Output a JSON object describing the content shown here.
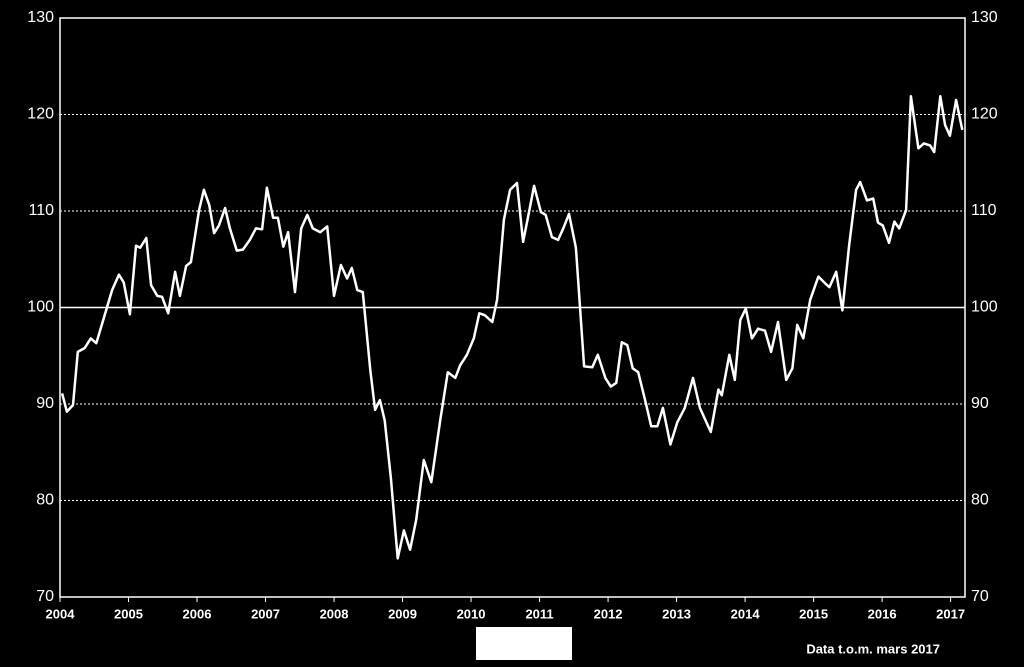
{
  "chart_data": {
    "type": "line",
    "annotation": "Data t.o.m. mars 2017",
    "xlim": [
      2004,
      2017.21
    ],
    "xticks": [
      2004,
      2005,
      2006,
      2007,
      2008,
      2009,
      2010,
      2011,
      2012,
      2013,
      2014,
      2015,
      2016,
      2017
    ],
    "ylim": [
      70,
      130
    ],
    "yticks": [
      70,
      80,
      90,
      100,
      110,
      120,
      130
    ],
    "y2lim": [
      70,
      130
    ],
    "y2ticks": [
      70,
      80,
      90,
      100,
      110,
      120,
      130
    ],
    "grid": true,
    "baseline": 100,
    "series": [
      {
        "color": "#ffffff",
        "x": [
          2004.03,
          2004.1,
          2004.19,
          2004.26,
          2004.36,
          2004.45,
          2004.53,
          2004.64,
          2004.76,
          2004.86,
          2004.93,
          2005.02,
          2005.11,
          2005.17,
          2005.26,
          2005.33,
          2005.42,
          2005.49,
          2005.58,
          2005.68,
          2005.75,
          2005.84,
          2005.91,
          2006.03,
          2006.1,
          2006.18,
          2006.25,
          2006.32,
          2006.41,
          2006.48,
          2006.58,
          2006.67,
          2006.77,
          2006.86,
          2006.95,
          2007.02,
          2007.11,
          2007.18,
          2007.26,
          2007.33,
          2007.43,
          2007.52,
          2007.61,
          2007.69,
          2007.8,
          2007.9,
          2008.0,
          2008.1,
          2008.19,
          2008.26,
          2008.34,
          2008.42,
          2008.53,
          2008.6,
          2008.67,
          2008.74,
          2008.83,
          2008.93,
          2009.02,
          2009.11,
          2009.2,
          2009.31,
          2009.42,
          2009.55,
          2009.66,
          2009.77,
          2009.84,
          2009.94,
          2010.04,
          2010.12,
          2010.2,
          2010.31,
          2010.38,
          2010.48,
          2010.57,
          2010.67,
          2010.76,
          2010.83,
          2010.92,
          2011.02,
          2011.09,
          2011.18,
          2011.27,
          2011.34,
          2011.43,
          2011.53,
          2011.65,
          2011.77,
          2011.85,
          2011.96,
          2012.04,
          2012.12,
          2012.2,
          2012.28,
          2012.36,
          2012.44,
          2012.54,
          2012.63,
          2012.72,
          2012.8,
          2012.91,
          2013.01,
          2013.12,
          2013.24,
          2013.34,
          2013.5,
          2013.61,
          2013.66,
          2013.77,
          2013.85,
          2013.93,
          2014.01,
          2014.1,
          2014.19,
          2014.29,
          2014.38,
          2014.48,
          2014.6,
          2014.69,
          2014.76,
          2014.85,
          2014.95,
          2015.07,
          2015.17,
          2015.23,
          2015.33,
          2015.42,
          2015.52,
          2015.62,
          2015.68,
          2015.78,
          2015.87,
          2015.94,
          2016.01,
          2016.1,
          2016.18,
          2016.25,
          2016.35,
          2016.42,
          2016.53,
          2016.61,
          2016.7,
          2016.76,
          2016.85,
          2016.92,
          2016.99,
          2017.08,
          2017.17
        ],
        "values": [
          91.1,
          89.2,
          89.9,
          95.4,
          95.8,
          96.8,
          96.3,
          98.9,
          101.8,
          103.4,
          102.6,
          99.3,
          106.4,
          106.2,
          107.2,
          102.3,
          101.2,
          101.1,
          99.4,
          103.7,
          101.2,
          104.3,
          104.7,
          110.1,
          112.2,
          110.6,
          107.7,
          108.5,
          110.3,
          108.2,
          105.9,
          106.0,
          107.0,
          108.2,
          108.1,
          112.4,
          109.3,
          109.3,
          106.3,
          107.8,
          101.6,
          108.2,
          109.6,
          108.2,
          107.8,
          108.4,
          101.2,
          104.4,
          103.0,
          104.1,
          101.8,
          101.6,
          93.5,
          89.4,
          90.4,
          88.3,
          82.3,
          74.0,
          76.9,
          74.9,
          78.0,
          84.2,
          81.9,
          88.3,
          93.3,
          92.7,
          94.0,
          95.1,
          96.8,
          99.4,
          99.2,
          98.5,
          100.8,
          109.1,
          112.2,
          112.9,
          106.8,
          109.3,
          112.6,
          109.9,
          109.6,
          107.3,
          107.0,
          108.1,
          109.7,
          106.2,
          93.9,
          93.8,
          95.1,
          92.7,
          91.8,
          92.2,
          96.4,
          96.1,
          93.7,
          93.3,
          90.4,
          87.7,
          87.7,
          89.6,
          85.8,
          88.1,
          89.6,
          92.7,
          89.6,
          87.1,
          91.5,
          90.9,
          95.1,
          92.5,
          98.7,
          99.9,
          96.8,
          97.8,
          97.6,
          95.4,
          98.5,
          92.5,
          93.7,
          98.2,
          96.8,
          100.8,
          103.2,
          102.5,
          102.1,
          103.7,
          99.7,
          106.5,
          112.2,
          113.0,
          111.1,
          111.3,
          108.8,
          108.5,
          106.7,
          108.9,
          108.2,
          110.1,
          121.9,
          116.5,
          117.0,
          116.8,
          116.1,
          121.9,
          118.9,
          117.8,
          121.5,
          118.4
        ]
      }
    ]
  }
}
